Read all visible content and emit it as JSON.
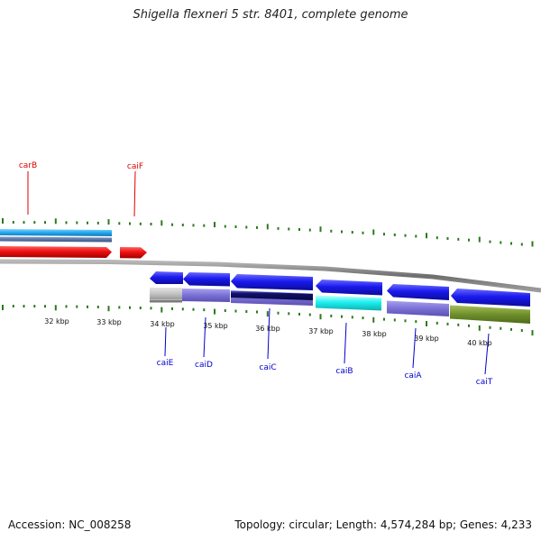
{
  "title": "Shigella flexneri 5 str. 8401, complete genome",
  "scale": {
    "kbp_labels": [
      "32 kbp",
      "33 kbp",
      "34 kbp",
      "35 kbp",
      "36 kbp",
      "37 kbp",
      "38 kbp",
      "39 kbp",
      "40 kbp"
    ]
  },
  "genes": {
    "top_strand": [
      {
        "name": "carB",
        "color": "#dd0000"
      },
      {
        "name": "caiF",
        "color": "#dd0000"
      }
    ],
    "bottom_strand": [
      {
        "name": "caiE",
        "color": "#0000cc"
      },
      {
        "name": "caiD",
        "color": "#0000cc"
      },
      {
        "name": "caiC",
        "color": "#0000cc"
      },
      {
        "name": "caiB",
        "color": "#0000cc"
      },
      {
        "name": "caiA",
        "color": "#0000cc"
      },
      {
        "name": "caiT",
        "color": "#0000cc"
      }
    ]
  },
  "colors": {
    "tick": "#2b7a1e",
    "backbone": "#8a8a8a",
    "cds_forward": "#e01010",
    "cds_reverse": "#1515d8"
  },
  "footer": {
    "accession": "Accession: NC_008258",
    "summary": "Topology: circular; Length: 4,574,284 bp; Genes: 4,233"
  }
}
